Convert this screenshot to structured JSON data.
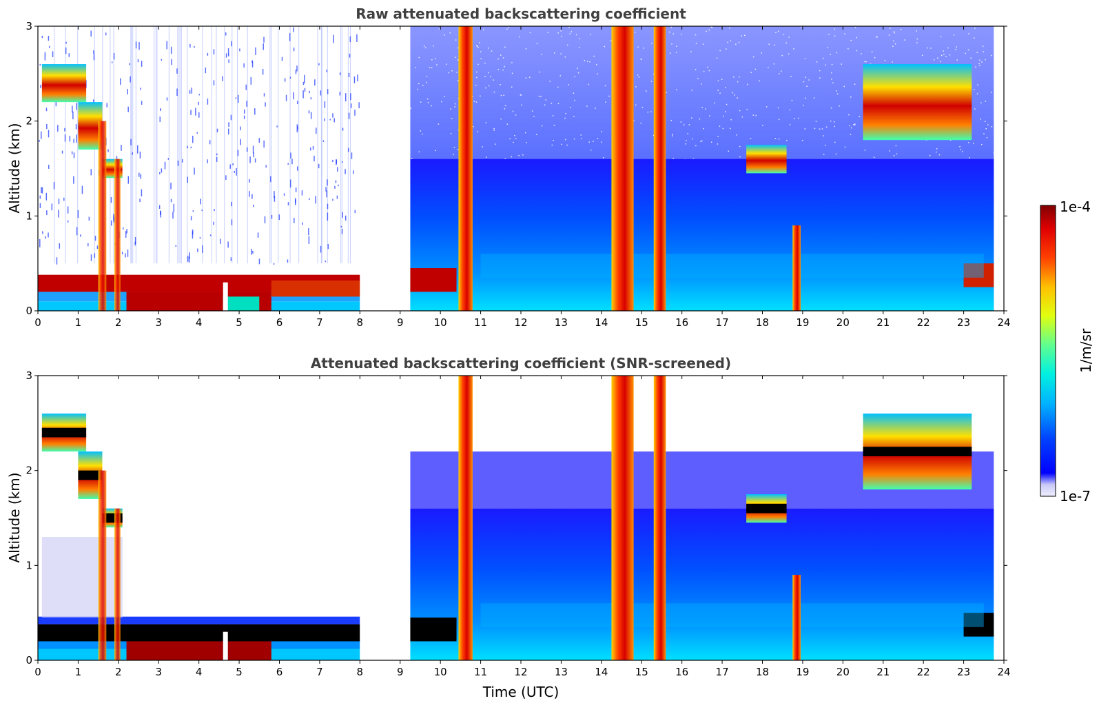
{
  "chart_data": [
    {
      "type": "heatmap",
      "title": "Raw attenuated backscattering coefficient",
      "xlabel": "",
      "ylabel": "Altitude (km)",
      "xlim": [
        0,
        24
      ],
      "ylim": [
        0,
        3
      ],
      "xticks": [
        0,
        1,
        2,
        3,
        4,
        5,
        6,
        7,
        8,
        9,
        10,
        11,
        12,
        13,
        14,
        15,
        16,
        17,
        18,
        19,
        20,
        21,
        22,
        23,
        24
      ],
      "yticks": [
        0,
        1,
        2,
        3
      ],
      "screened": false,
      "data_gaps_utc": [
        [
          8.0,
          9.25
        ],
        [
          23.75,
          24.0
        ]
      ],
      "cloud_layers": [
        {
          "start": 0.1,
          "end": 1.2,
          "base_km": 2.2,
          "top_km": 2.6
        },
        {
          "start": 1.0,
          "end": 1.6,
          "base_km": 1.7,
          "top_km": 2.2
        },
        {
          "start": 1.6,
          "end": 2.1,
          "base_km": 1.4,
          "top_km": 1.6
        },
        {
          "start": 17.6,
          "end": 18.6,
          "base_km": 1.45,
          "top_km": 1.75
        },
        {
          "start": 20.5,
          "end": 23.2,
          "base_km": 1.8,
          "top_km": 2.6
        }
      ],
      "precipitation_streaks": [
        {
          "start": 10.45,
          "end": 10.8,
          "top_km": 3.0
        },
        {
          "start": 14.25,
          "end": 14.8,
          "top_km": 3.0
        },
        {
          "start": 15.3,
          "end": 15.6,
          "top_km": 3.0
        },
        {
          "start": 18.75,
          "end": 18.95,
          "top_km": 0.9
        }
      ]
    },
    {
      "type": "heatmap",
      "title": "Attenuated backscattering coefficient (SNR-screened)",
      "xlabel": "Time (UTC)",
      "ylabel": "Altitude (km)",
      "xlim": [
        0,
        24
      ],
      "ylim": [
        0,
        3
      ],
      "xticks": [
        0,
        1,
        2,
        3,
        4,
        5,
        6,
        7,
        8,
        9,
        10,
        11,
        12,
        13,
        14,
        15,
        16,
        17,
        18,
        19,
        20,
        21,
        22,
        23,
        24
      ],
      "yticks": [
        0,
        1,
        2,
        3
      ],
      "screened": true,
      "data_gaps_utc": [
        [
          8.0,
          9.25
        ],
        [
          23.75,
          24.0
        ]
      ]
    }
  ],
  "colorbar": {
    "label": "1/m/sr",
    "max_label": "1e-4",
    "min_label": "1e-7",
    "vmin": 1e-07,
    "vmax": 0.0001,
    "scale": "log",
    "colormap": "jet"
  }
}
